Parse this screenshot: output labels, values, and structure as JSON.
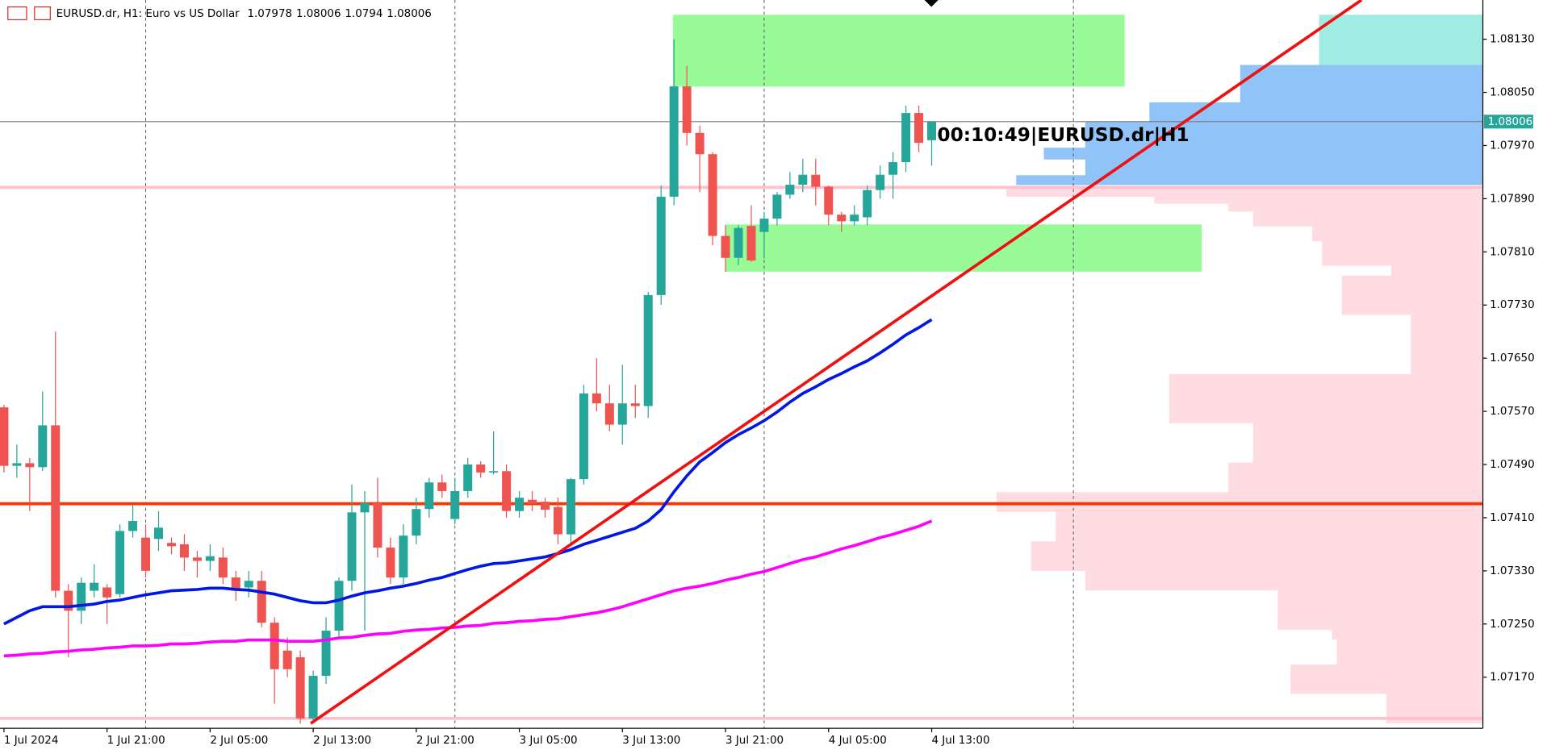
{
  "chart_data": {
    "type": "candlestick",
    "title": "EURUSD.dr, H1:  Euro vs US Dollar",
    "annotation": "00:10:49|EURUSD.dr|H1",
    "categories": [
      "1 Jul 2024",
      null,
      null,
      null,
      null,
      null,
      null,
      null,
      "1 Jul 21:00",
      null,
      null,
      null,
      null,
      null,
      null,
      null,
      "2 Jul 05:00",
      null,
      null,
      null,
      null,
      null,
      null,
      null,
      "2 Jul 13:00",
      null,
      null,
      null,
      null,
      null,
      null,
      null,
      "2 Jul 21:00",
      null,
      null,
      null,
      null,
      null,
      null,
      null,
      "3 Jul 05:00",
      null,
      null,
      null,
      null,
      null,
      null,
      null,
      "3 Jul 13:00",
      null,
      null,
      null,
      null,
      null,
      null,
      null,
      "3 Jul 21:00",
      null,
      null,
      null,
      null,
      null,
      null,
      null,
      "4 Jul 05:00",
      null,
      null,
      null,
      null,
      null,
      null,
      null,
      "4 Jul 13:00"
    ],
    "open": [
      1.07576,
      1.07488,
      1.07492,
      1.07486,
      1.07549,
      1.073,
      1.0727,
      1.073,
      1.07305,
      1.07295,
      1.0739,
      1.0738,
      1.07378,
      1.07372,
      1.0737,
      1.0735,
      1.07345,
      1.0735,
      1.0732,
      1.07305,
      1.07315,
      1.07252,
      1.0721,
      1.072,
      1.07108,
      1.07172,
      1.0724,
      1.07315,
      1.07418,
      1.07432,
      1.07365,
      1.0732,
      1.07383,
      1.07423,
      1.07463,
      1.07408,
      1.0745,
      1.0749,
      1.07478,
      1.0748,
      1.0742,
      1.07437,
      1.07434,
      1.07426,
      1.07385,
      1.07468,
      1.07597,
      1.07582,
      1.0755,
      1.07582,
      1.07578,
      1.07745,
      1.07893,
      1.08059,
      1.07989,
      1.07957,
      1.07834,
      1.07801,
      1.07849,
      1.0784,
      1.0786,
      1.07896,
      1.07911,
      1.07926,
      1.07908,
      1.07866,
      1.07856,
      1.07862,
      1.07903,
      1.07926,
      1.07945,
      1.08019,
      1.07978
    ],
    "high": [
      1.0758,
      1.0752,
      1.075,
      1.076,
      1.0769,
      1.0731,
      1.0732,
      1.0734,
      1.0731,
      1.074,
      1.0743,
      1.074,
      1.0742,
      1.0738,
      1.07385,
      1.0736,
      1.0737,
      1.07365,
      1.0733,
      1.0733,
      1.0733,
      1.0726,
      1.0723,
      1.0721,
      1.0718,
      1.0726,
      1.0732,
      1.0746,
      1.0745,
      1.0747,
      1.0738,
      1.074,
      1.0744,
      1.0747,
      1.07475,
      1.0747,
      1.075,
      1.07495,
      1.0754,
      1.0749,
      1.0745,
      1.0745,
      1.0744,
      1.0744,
      1.0747,
      1.0761,
      1.0765,
      1.0761,
      1.0764,
      1.0761,
      1.0775,
      1.0791,
      1.0813,
      1.0809,
      1.08,
      1.0796,
      1.0785,
      1.0785,
      1.0788,
      1.0787,
      1.079,
      1.0793,
      1.0795,
      1.0795,
      1.0791,
      1.0787,
      1.0788,
      1.0791,
      1.0794,
      1.0796,
      1.0803,
      1.0803,
      1.08006
    ],
    "low": [
      1.07478,
      1.0747,
      1.0742,
      1.0748,
      1.0729,
      1.072,
      1.0725,
      1.0729,
      1.0725,
      1.0729,
      1.0738,
      1.0732,
      1.0736,
      1.07355,
      1.0733,
      1.0732,
      1.0733,
      1.0731,
      1.07285,
      1.0729,
      1.07245,
      1.0713,
      1.0717,
      1.071,
      1.071,
      1.0716,
      1.0723,
      1.073,
      1.0724,
      1.0735,
      1.0731,
      1.0731,
      1.0737,
      1.0741,
      1.0744,
      1.074,
      1.0744,
      1.0747,
      1.07475,
      1.0741,
      1.0741,
      1.0742,
      1.0741,
      1.0737,
      1.0737,
      1.0746,
      1.0757,
      1.0754,
      1.0752,
      1.0756,
      1.0756,
      1.0773,
      1.0788,
      1.0797,
      1.079,
      1.0782,
      1.0778,
      1.0779,
      1.07795,
      1.078,
      1.0785,
      1.0789,
      1.079,
      1.0788,
      1.0785,
      1.0784,
      1.0785,
      1.0785,
      1.0789,
      1.0789,
      1.0793,
      1.0796,
      1.0794
    ],
    "close": [
      1.07488,
      1.07492,
      1.07486,
      1.07549,
      1.073,
      1.0727,
      1.07312,
      1.07312,
      1.0729,
      1.0739,
      1.07405,
      1.0733,
      1.07395,
      1.07367,
      1.0735,
      1.07345,
      1.07352,
      1.0732,
      1.073,
      1.07315,
      1.07252,
      1.07182,
      1.07182,
      1.07108,
      1.07172,
      1.0724,
      1.07315,
      1.07418,
      1.07432,
      1.07365,
      1.0732,
      1.07383,
      1.07423,
      1.07463,
      1.0745,
      1.0745,
      1.0749,
      1.07478,
      1.0748,
      1.0742,
      1.0744,
      1.07431,
      1.07422,
      1.07385,
      1.07468,
      1.07597,
      1.07582,
      1.0755,
      1.07582,
      1.07578,
      1.07745,
      1.07893,
      1.08059,
      1.07989,
      1.07957,
      1.07834,
      1.07801,
      1.07846,
      1.07797,
      1.0786,
      1.07896,
      1.07911,
      1.07926,
      1.07908,
      1.07866,
      1.07856,
      1.07866,
      1.07903,
      1.07926,
      1.07945,
      1.08019,
      1.07974,
      1.08006
    ],
    "up_color": "#26a69a",
    "down_color": "#ef5350",
    "lines": [
      {
        "color": "#0018e0",
        "values": [
          1.0725,
          1.0726,
          1.0727,
          1.07276,
          1.07276,
          1.07276,
          1.07278,
          1.0728,
          1.07284,
          1.07286,
          1.0729,
          1.07294,
          1.07297,
          1.073,
          1.07301,
          1.07302,
          1.07304,
          1.07304,
          1.07302,
          1.07301,
          1.07298,
          1.07295,
          1.0729,
          1.07285,
          1.07282,
          1.07282,
          1.07286,
          1.07292,
          1.07297,
          1.073,
          1.07304,
          1.07307,
          1.07311,
          1.07316,
          1.0732,
          1.07326,
          1.07332,
          1.07337,
          1.07341,
          1.07342,
          1.07345,
          1.07348,
          1.07351,
          1.07356,
          1.07362,
          1.0737,
          1.07376,
          1.07382,
          1.07388,
          1.07394,
          1.07405,
          1.07422,
          1.07449,
          1.07473,
          1.07494,
          1.07508,
          1.07523,
          1.07535,
          1.07545,
          1.07556,
          1.07569,
          1.07584,
          1.07597,
          1.07607,
          1.07618,
          1.07627,
          1.07637,
          1.07646,
          1.07658,
          1.07671,
          1.07685,
          1.07696,
          1.07708
        ]
      },
      {
        "color": "#ff00ff",
        "values": [
          1.07202,
          1.07203,
          1.07205,
          1.07206,
          1.07208,
          1.07209,
          1.07211,
          1.07212,
          1.07214,
          1.07215,
          1.07217,
          1.07217,
          1.07218,
          1.0722,
          1.0722,
          1.07221,
          1.07223,
          1.07224,
          1.07224,
          1.07226,
          1.07226,
          1.07226,
          1.07224,
          1.07224,
          1.07224,
          1.07226,
          1.07229,
          1.0723,
          1.07233,
          1.07235,
          1.07236,
          1.07239,
          1.07241,
          1.07242,
          1.07244,
          1.07245,
          1.07247,
          1.07248,
          1.07251,
          1.07252,
          1.07254,
          1.07255,
          1.07257,
          1.07258,
          1.07261,
          1.07264,
          1.07267,
          1.07271,
          1.07276,
          1.07282,
          1.07288,
          1.07294,
          1.073,
          1.07304,
          1.07307,
          1.07311,
          1.07316,
          1.0732,
          1.07325,
          1.07329,
          1.07335,
          1.07341,
          1.07347,
          1.07351,
          1.07357,
          1.07363,
          1.07368,
          1.07374,
          1.0738,
          1.07385,
          1.07391,
          1.07397,
          1.07405
        ]
      }
    ],
    "levels": [
      {
        "value": 1.07431,
        "color": "#ff3300"
      },
      {
        "value": 1.07907,
        "color": "#ffc0cb"
      },
      {
        "value": 1.07108,
        "color": "#ffc0cb"
      }
    ],
    "ylim": [
      1.07093,
      1.08189
    ],
    "yticks": [
      {
        "value": 1.0813,
        "label": "1.08130"
      },
      {
        "value": 1.0805,
        "label": "1.08050"
      },
      {
        "value": 1.0797,
        "label": "1.07970"
      },
      {
        "value": 1.0789,
        "label": "1.07890"
      },
      {
        "value": 1.0781,
        "label": "1.07810"
      },
      {
        "value": 1.0773,
        "label": "1.07730"
      },
      {
        "value": 1.0765,
        "label": "1.07650"
      },
      {
        "value": 1.0757,
        "label": "1.07570"
      },
      {
        "value": 1.0749,
        "label": "1.07490"
      },
      {
        "value": 1.0741,
        "label": "1.07410"
      },
      {
        "value": 1.0733,
        "label": "1.07330"
      },
      {
        "value": 1.0725,
        "label": "1.07250"
      },
      {
        "value": 1.0717,
        "label": "1.07170"
      }
    ],
    "grid": false
  }
}
